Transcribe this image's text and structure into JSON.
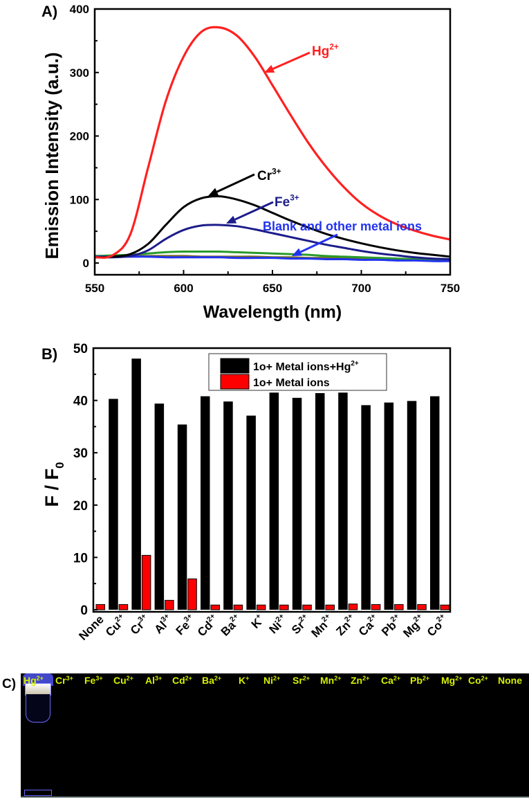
{
  "chart_data": [
    {
      "type": "line",
      "panel_label": "A)",
      "xlabel": "Wavelength (nm)",
      "ylabel": "Emission Intensity (a.u.)",
      "xlim": [
        550,
        750
      ],
      "ylim": [
        -18.5,
        400
      ],
      "xticks": [
        550,
        600,
        650,
        700,
        750
      ],
      "yticks": [
        0,
        100,
        200,
        300,
        400
      ],
      "x": [
        550,
        560,
        570,
        580,
        590,
        600,
        610,
        620,
        630,
        640,
        650,
        660,
        670,
        680,
        690,
        700,
        710,
        720,
        730,
        740,
        750
      ],
      "series": [
        {
          "color": "#7a6a20",
          "values": [
            11,
            11,
            11,
            11,
            11,
            11,
            10,
            10,
            10,
            10,
            9,
            9,
            8,
            8,
            7,
            7,
            6,
            6,
            5,
            5,
            4
          ]
        },
        {
          "color": "#2a9a2a",
          "values": [
            11,
            12,
            13,
            15,
            17,
            18,
            18,
            18,
            17,
            16,
            15,
            14,
            13,
            11,
            10,
            9,
            8,
            7,
            6,
            5,
            5
          ]
        },
        {
          "color": "#2233ee",
          "label": {
            "base": "Blank and other metal ions",
            "sup": ""
          },
          "values": [
            10,
            10,
            10,
            10,
            9,
            9,
            9,
            9,
            8,
            8,
            8,
            7,
            7,
            6,
            6,
            5,
            5,
            4,
            4,
            3,
            3
          ]
        },
        {
          "color": "#1c1c8a",
          "label": {
            "base": "Fe",
            "sup": "3+"
          },
          "values": [
            9,
            9,
            11,
            20,
            38,
            52,
            59,
            60,
            58,
            53,
            47,
            41,
            35,
            29,
            24,
            19,
            15,
            12,
            9,
            7,
            6
          ]
        },
        {
          "color": "#000000",
          "label": {
            "base": "Cr",
            "sup": "3+"
          },
          "values": [
            9,
            10,
            14,
            30,
            60,
            88,
            102,
            105,
            100,
            91,
            79,
            67,
            56,
            46,
            38,
            31,
            25,
            20,
            16,
            13,
            10
          ]
        },
        {
          "color": "#ff2020",
          "label": {
            "base": "Hg",
            "sup": "2+"
          },
          "values": [
            9,
            12,
            45,
            150,
            255,
            325,
            364,
            371,
            358,
            325,
            280,
            234,
            190,
            152,
            120,
            94,
            75,
            61,
            51,
            43,
            37
          ]
        }
      ]
    },
    {
      "type": "bar",
      "panel_label": "B)",
      "xlabel": "",
      "ylabel": {
        "base": "F / F",
        "sub": "0"
      },
      "ylim": [
        -0.4,
        50
      ],
      "yticks": [
        0,
        10,
        20,
        30,
        40,
        50
      ],
      "legend_position": "top-center",
      "categories": [
        {
          "base": "None",
          "sup": ""
        },
        {
          "base": "Cu",
          "sup": "2+"
        },
        {
          "base": "Cr",
          "sup": "3+"
        },
        {
          "base": "Al",
          "sup": "3+"
        },
        {
          "base": "Fe",
          "sup": "3+"
        },
        {
          "base": "Cd",
          "sup": "2+"
        },
        {
          "base": "Ba",
          "sup": "2+"
        },
        {
          "base": "K",
          "sup": "+"
        },
        {
          "base": "Ni",
          "sup": "2+"
        },
        {
          "base": "Sr",
          "sup": "2+"
        },
        {
          "base": "Mn",
          "sup": "2+"
        },
        {
          "base": "Zn",
          "sup": "2+"
        },
        {
          "base": "Ca",
          "sup": "2+"
        },
        {
          "base": "Pb",
          "sup": "2+"
        },
        {
          "base": "Mg",
          "sup": "2+"
        },
        {
          "base": "Co",
          "sup": "2+"
        }
      ],
      "series": [
        {
          "name": {
            "base": "1o+ Metal ions+Hg",
            "sup": "2+"
          },
          "color": "#000000",
          "values": [
            null,
            40.3,
            48.0,
            39.4,
            35.4,
            40.8,
            39.8,
            37.1,
            41.5,
            40.5,
            41.4,
            41.5,
            39.1,
            39.6,
            39.9,
            40.8
          ]
        },
        {
          "name": {
            "base": "1o+ Metal ions",
            "sup": ""
          },
          "color": "#ff0000",
          "values": [
            1.0,
            1.0,
            10.4,
            1.8,
            5.9,
            0.9,
            0.9,
            0.9,
            0.9,
            0.9,
            0.9,
            1.1,
            1.0,
            1.0,
            1.0,
            0.9
          ]
        }
      ]
    }
  ],
  "panel_c": {
    "label": "C)",
    "vials": [
      {
        "base": "Hg",
        "sup": "2+"
      },
      {
        "base": "Cr",
        "sup": "3+"
      },
      {
        "base": "Fe",
        "sup": "3+"
      },
      {
        "base": "Cu",
        "sup": "2+"
      },
      {
        "base": "Al",
        "sup": "3+"
      },
      {
        "base": "Cd",
        "sup": "2+"
      },
      {
        "base": "Ba",
        "sup": "2+"
      },
      {
        "base": "K",
        "sup": "+"
      },
      {
        "base": "Ni",
        "sup": "2+"
      },
      {
        "base": "Sr",
        "sup": "2+"
      },
      {
        "base": "Mn",
        "sup": "2+"
      },
      {
        "base": "Zn",
        "sup": "2+"
      },
      {
        "base": "Ca",
        "sup": "2+"
      },
      {
        "base": "Pb",
        "sup": "2+"
      },
      {
        "base": "Mg",
        "sup": "2+"
      },
      {
        "base": "Co",
        "sup": "2+"
      },
      {
        "base": "None",
        "sup": ""
      }
    ],
    "colors": {
      "label": "#d4f000",
      "background": "#000000",
      "fluorescence": "#ff3a30"
    }
  }
}
